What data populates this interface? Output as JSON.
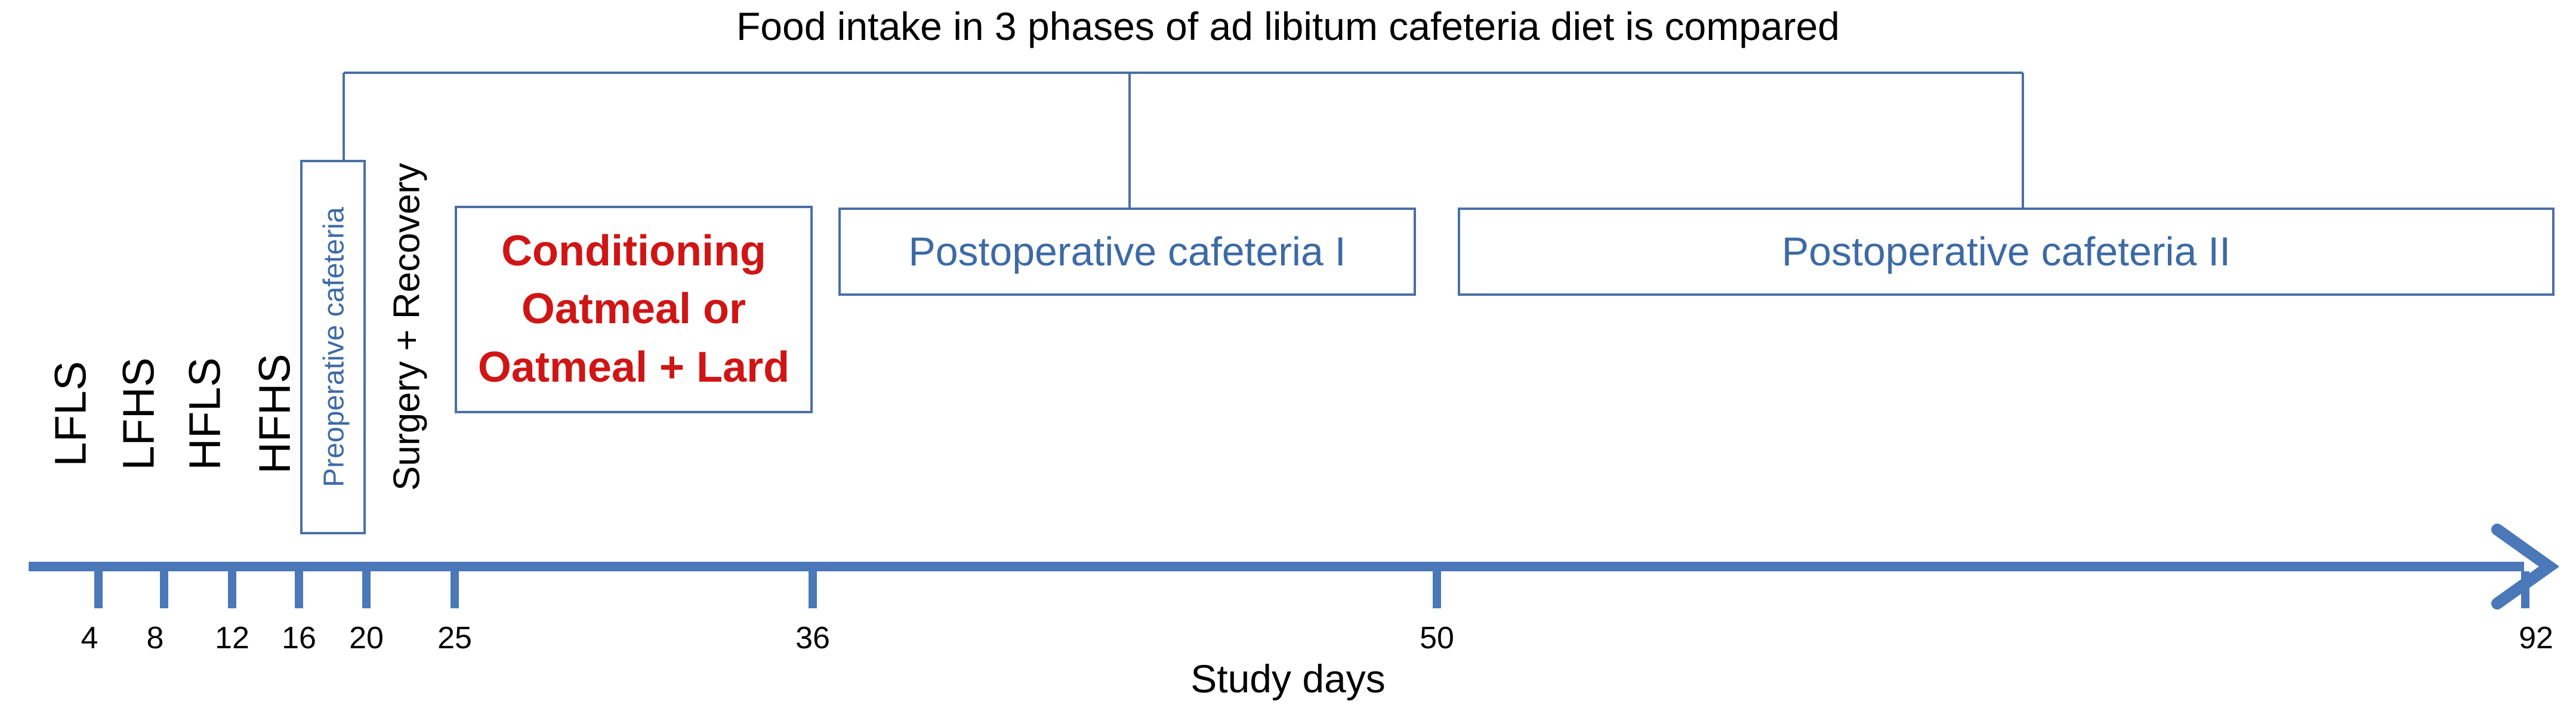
{
  "title": "Food intake in 3 phases of ad libitum cafeteria diet is compared",
  "diet_labels": [
    "LFLS",
    "LFHS",
    "HFLS",
    "HFHS"
  ],
  "preoperative_label": "Preoperative cafeteria",
  "surgery_label": "Surgery + Recovery",
  "conditioning": {
    "line1": "Conditioning",
    "line2": "Oatmeal or",
    "line3": "Oatmeal + Lard"
  },
  "postop1_label": "Postoperative cafeteria I",
  "postop2_label": "Postoperative cafeteria II",
  "ticks": [
    "4",
    "8",
    "12",
    "16",
    "20",
    "25",
    "36",
    "50",
    "92"
  ],
  "xlabel": "Study days",
  "colors": {
    "axis": "#4a78b8",
    "box_border": "#4a6fa5",
    "box_text": "#3d6aa6",
    "conditioning_text": "#d01515",
    "bracket": "#4a6fa5"
  }
}
